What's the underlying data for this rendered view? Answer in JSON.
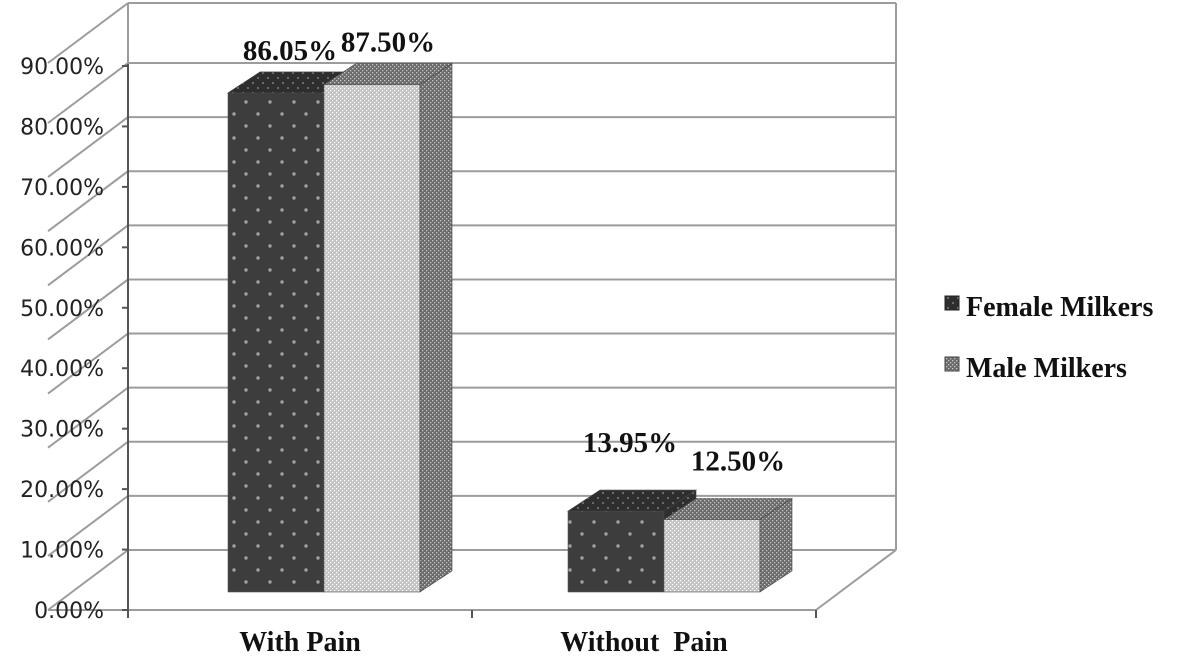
{
  "chart_data": {
    "type": "bar",
    "categories": [
      "With Pain",
      "Without  Pain"
    ],
    "series": [
      {
        "name": "Female Milkers",
        "values": [
          86.05,
          13.95
        ],
        "labels": [
          "86.05%",
          "13.95%"
        ]
      },
      {
        "name": "Male Milkers",
        "values": [
          87.5,
          12.5
        ],
        "labels": [
          "87.50%",
          "12.50%"
        ]
      }
    ],
    "y_ticks": [
      "0.00%",
      "10.00%",
      "20.00%",
      "30.00%",
      "40.00%",
      "50.00%",
      "60.00%",
      "70.00%",
      "80.00%",
      "90.00%"
    ],
    "ylim": [
      0,
      90
    ],
    "grid": true,
    "legend_position": "right",
    "style": "3d-clustered-column",
    "colors": {
      "female_face": "#3d3d3d",
      "female_dot": "#9a9a9a",
      "male_face": "#bdbdbd",
      "male_dot": "#ffffff",
      "grid": "#9c9c9c",
      "text": "#111111"
    }
  }
}
